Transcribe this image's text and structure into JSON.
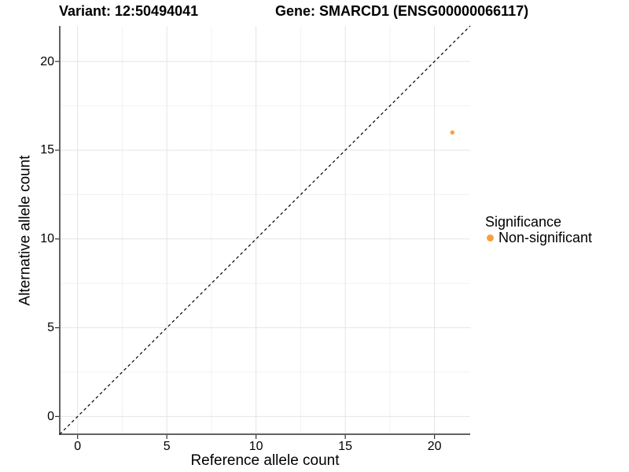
{
  "header": {
    "variant_title": "Variant: 12:50494041",
    "gene_title": "Gene: SMARCD1 (ENSG00000066117)"
  },
  "chart_data": {
    "type": "scatter",
    "xlabel": "Reference allele count",
    "ylabel": "Alternative allele count",
    "xlim": [
      -1,
      22
    ],
    "ylim": [
      -1,
      22
    ],
    "xticks": [
      0,
      5,
      10,
      15,
      20
    ],
    "yticks": [
      0,
      5,
      10,
      15,
      20
    ],
    "xminor": [
      2.5,
      7.5,
      12.5,
      17.5
    ],
    "yminor": [
      2.5,
      7.5,
      12.5,
      17.5
    ],
    "grid": "major+minor",
    "identity_line": {
      "style": "dashed",
      "x1": -1,
      "y1": -1,
      "x2": 22,
      "y2": 22
    },
    "series": [
      {
        "name": "Non-significant",
        "color": "#F9A03C",
        "points": [
          {
            "x": 21,
            "y": 16
          }
        ]
      }
    ],
    "legend": {
      "title": "Significance",
      "position": "right",
      "items": [
        {
          "label": "Non-significant",
          "color": "#F9A03C"
        }
      ]
    },
    "colors": {
      "grid_major": "#E4E4E4",
      "grid_minor": "#F0F0F0",
      "axis_line": "#2F2F2F",
      "identity_line": "#000000",
      "text": "#000000",
      "background": "#FFFFFF"
    }
  }
}
